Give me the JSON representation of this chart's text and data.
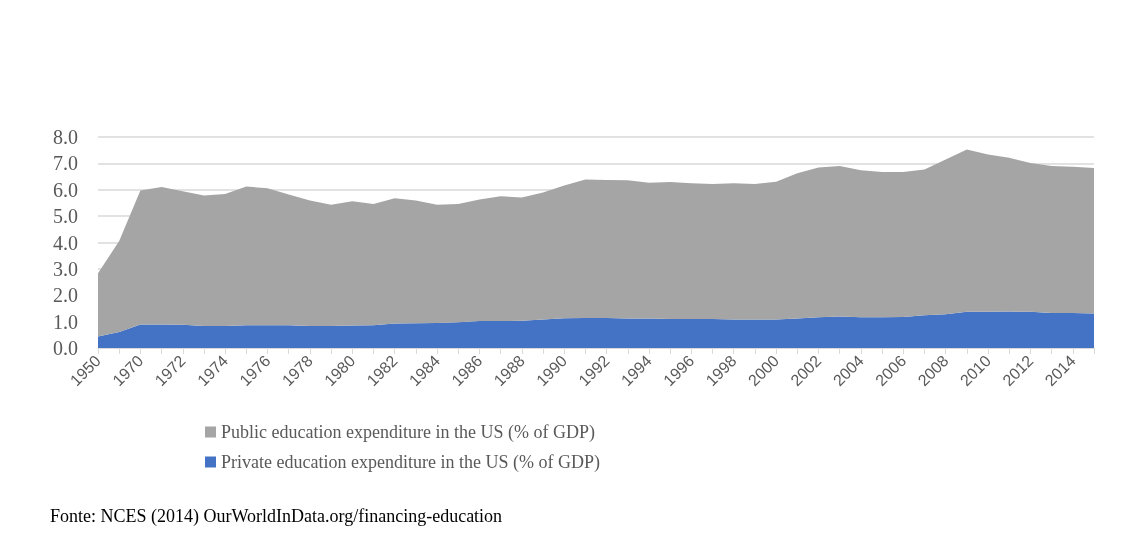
{
  "chart_data": {
    "type": "area",
    "stacked": true,
    "categories": [
      "1950",
      null,
      "1970",
      null,
      "1972",
      null,
      "1974",
      null,
      "1976",
      null,
      "1978",
      null,
      "1980",
      null,
      "1982",
      null,
      "1984",
      null,
      "1986",
      null,
      "1988",
      null,
      "1990",
      null,
      "1992",
      null,
      "1994",
      null,
      "1996",
      null,
      "1998",
      null,
      "2000",
      null,
      "2002",
      null,
      "2004",
      null,
      "2006",
      null,
      "2008",
      null,
      "2010",
      null,
      "2012",
      null,
      "2014",
      null
    ],
    "series": [
      {
        "name": "Private education expenditure in the US (% of GDP)",
        "color": "#4472c4",
        "values": [
          0.44,
          0.61,
          0.89,
          0.89,
          0.88,
          0.83,
          0.83,
          0.86,
          0.86,
          0.86,
          0.83,
          0.83,
          0.85,
          0.86,
          0.93,
          0.94,
          0.95,
          0.98,
          1.02,
          1.02,
          1.03,
          1.08,
          1.13,
          1.14,
          1.14,
          1.12,
          1.12,
          1.1,
          1.1,
          1.1,
          1.08,
          1.08,
          1.08,
          1.12,
          1.17,
          1.19,
          1.17,
          1.17,
          1.18,
          1.24,
          1.28,
          1.37,
          1.37,
          1.38,
          1.37,
          1.33,
          1.33,
          1.31
        ]
      },
      {
        "name": "Public education expenditure in the US (% of GDP)",
        "color": "#a5a5a5",
        "values": [
          2.39,
          3.45,
          5.08,
          5.21,
          5.06,
          4.95,
          5.01,
          5.26,
          5.2,
          4.96,
          4.76,
          4.6,
          4.71,
          4.6,
          4.75,
          4.65,
          4.48,
          4.48,
          4.61,
          4.73,
          4.68,
          4.82,
          5.03,
          5.25,
          5.23,
          5.24,
          5.15,
          5.19,
          5.15,
          5.12,
          5.17,
          5.14,
          5.22,
          5.51,
          5.67,
          5.71,
          5.57,
          5.5,
          5.49,
          5.53,
          5.87,
          6.16,
          5.97,
          5.83,
          5.64,
          5.57,
          5.54,
          5.51
        ]
      }
    ],
    "ylim": [
      0,
      8
    ],
    "yticks": [
      {
        "value": 0,
        "label": "0.0"
      },
      {
        "value": 1,
        "label": "1.0"
      },
      {
        "value": 2,
        "label": "2.0"
      },
      {
        "value": 3,
        "label": "3.0"
      },
      {
        "value": 4,
        "label": "4.0"
      },
      {
        "value": 5,
        "label": "5.0"
      },
      {
        "value": 6,
        "label": "6.0"
      },
      {
        "value": 7,
        "label": "7.0"
      },
      {
        "value": 8,
        "label": "8.0"
      }
    ],
    "grid": "y",
    "legend": "bottom",
    "marker": "none",
    "annotations": [
      "Fonte: NCES (2014) OurWorldInData.org/financing-education"
    ]
  }
}
